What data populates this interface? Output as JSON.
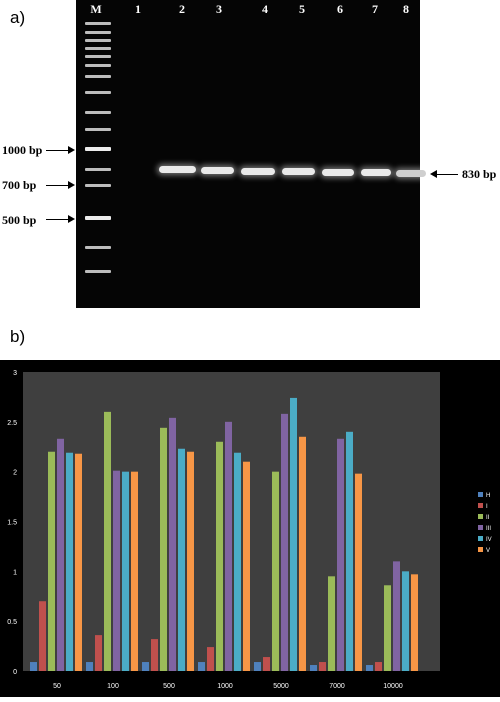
{
  "panel_a": {
    "label": "a)",
    "lanes": [
      "M",
      "1",
      "2",
      "3",
      "4",
      "5",
      "6",
      "7",
      "8"
    ],
    "markers": [
      {
        "label": "1000 bp"
      },
      {
        "label": "700 bp"
      },
      {
        "label": "500 bp"
      }
    ],
    "product_label": "830 bp"
  },
  "panel_b": {
    "label": "b)"
  },
  "chart_data": {
    "type": "bar",
    "categories": [
      "50",
      "100",
      "500",
      "1000",
      "5000",
      "7000",
      "10000"
    ],
    "ylim": [
      0,
      3
    ],
    "yticks": [
      "0",
      "0.5",
      "1",
      "1.5",
      "2",
      "2.5",
      "3"
    ],
    "grid": false,
    "legend_position": "right",
    "series": [
      {
        "name": "H",
        "color": "#4f81bd",
        "values": [
          0.09,
          0.09,
          0.09,
          0.09,
          0.09,
          0.06,
          0.06
        ]
      },
      {
        "name": "I",
        "color": "#c0504d",
        "values": [
          0.7,
          0.36,
          0.32,
          0.24,
          0.14,
          0.09,
          0.09
        ]
      },
      {
        "name": "II",
        "color": "#9bbb59",
        "values": [
          2.2,
          2.6,
          2.44,
          2.3,
          2.0,
          0.95,
          0.86
        ]
      },
      {
        "name": "III",
        "color": "#8064a2",
        "values": [
          2.33,
          2.01,
          2.54,
          2.5,
          2.58,
          2.33,
          1.1
        ]
      },
      {
        "name": "IV",
        "color": "#4bacc6",
        "values": [
          2.19,
          2.0,
          2.23,
          2.19,
          2.74,
          2.4,
          1.0
        ]
      },
      {
        "name": "V",
        "color": "#f79646",
        "values": [
          2.18,
          2.0,
          2.2,
          2.1,
          2.35,
          1.98,
          0.97
        ]
      }
    ]
  }
}
